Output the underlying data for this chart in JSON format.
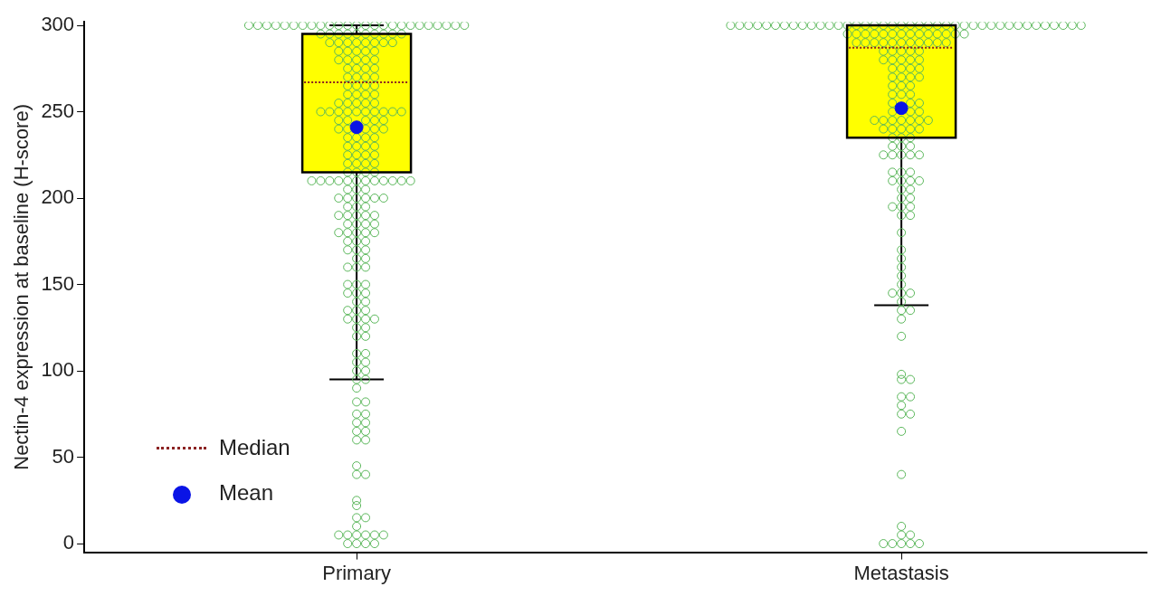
{
  "chart_data": {
    "type": "box",
    "ylabel": "Nectin-4 expression at baseline (H-score)",
    "categories": [
      "Primary",
      "Metastasis"
    ],
    "ylim": [
      -5,
      302
    ],
    "yticks": [
      0,
      50,
      100,
      150,
      200,
      250,
      300
    ],
    "grid": false,
    "annotations": [
      "Median",
      "Mean"
    ],
    "series": [
      {
        "type": "box",
        "color": "#ffff00",
        "boxes": [
          {
            "low": 95,
            "q1": 215,
            "median": 267,
            "q3": 295,
            "high": 300,
            "mean": 241
          },
          {
            "low": 138,
            "q1": 235,
            "median": 287,
            "q3": 300,
            "high": 300,
            "mean": 252
          }
        ]
      },
      {
        "type": "scatter",
        "color": "#5cb85c",
        "marker": "circle",
        "x": [
          "Primary",
          "Primary",
          "Primary",
          "Primary",
          "Primary",
          "Primary",
          "Primary",
          "Primary",
          "Primary",
          "Primary",
          "Primary",
          "Primary",
          "Primary",
          "Primary",
          "Primary",
          "Primary",
          "Primary",
          "Primary",
          "Primary",
          "Primary",
          "Primary",
          "Primary",
          "Primary",
          "Primary",
          "Primary",
          "Primary",
          "Primary",
          "Primary",
          "Primary",
          "Primary",
          "Primary",
          "Primary",
          "Primary",
          "Primary",
          "Primary",
          "Primary",
          "Primary",
          "Primary",
          "Primary",
          "Primary",
          "Primary",
          "Primary",
          "Primary",
          "Primary",
          "Primary",
          "Primary",
          "Primary",
          "Primary",
          "Primary",
          "Primary",
          "Primary",
          "Primary",
          "Primary",
          "Primary",
          "Primary",
          "Primary",
          "Primary",
          "Primary",
          "Primary",
          "Primary",
          "Primary",
          "Primary",
          "Primary",
          "Primary",
          "Primary",
          "Primary",
          "Primary",
          "Primary",
          "Primary",
          "Primary",
          "Primary",
          "Primary",
          "Primary",
          "Primary",
          "Primary",
          "Primary",
          "Primary",
          "Primary",
          "Primary",
          "Primary",
          "Primary",
          "Primary",
          "Primary",
          "Primary",
          "Primary",
          "Primary",
          "Primary",
          "Primary",
          "Primary",
          "Primary",
          "Primary",
          "Primary",
          "Primary",
          "Primary",
          "Primary",
          "Primary",
          "Primary",
          "Primary",
          "Primary",
          "Primary",
          "Primary",
          "Primary",
          "Primary",
          "Primary",
          "Primary",
          "Primary",
          "Primary",
          "Primary",
          "Primary",
          "Primary",
          "Primary",
          "Primary",
          "Primary",
          "Primary",
          "Primary",
          "Primary",
          "Primary",
          "Primary",
          "Primary",
          "Primary",
          "Primary",
          "Primary",
          "Primary",
          "Primary",
          "Primary",
          "Primary",
          "Primary",
          "Primary",
          "Primary",
          "Primary",
          "Primary",
          "Primary",
          "Primary",
          "Primary",
          "Primary",
          "Primary",
          "Primary",
          "Primary",
          "Primary",
          "Primary",
          "Primary",
          "Primary",
          "Primary",
          "Primary",
          "Primary",
          "Primary",
          "Primary",
          "Primary",
          "Primary",
          "Primary",
          "Primary",
          "Primary",
          "Primary",
          "Primary",
          "Primary",
          "Primary",
          "Primary",
          "Primary",
          "Primary",
          "Primary",
          "Primary",
          "Primary",
          "Primary",
          "Primary",
          "Primary",
          "Primary",
          "Primary",
          "Primary",
          "Primary",
          "Primary",
          "Primary",
          "Primary",
          "Primary",
          "Primary",
          "Primary",
          "Primary",
          "Primary",
          "Primary",
          "Primary",
          "Primary",
          "Primary",
          "Primary",
          "Primary",
          "Primary",
          "Primary",
          "Primary",
          "Primary",
          "Primary",
          "Primary",
          "Primary",
          "Primary",
          "Primary",
          "Primary",
          "Primary",
          "Primary",
          "Primary",
          "Primary",
          "Primary",
          "Primary",
          "Primary",
          "Primary",
          "Primary",
          "Primary",
          "Primary",
          "Primary",
          "Primary",
          "Primary",
          "Primary",
          "Primary",
          "Primary",
          "Primary",
          "Primary",
          "Primary",
          "Primary",
          "Primary",
          "Primary",
          "Primary",
          "Primary",
          "Primary"
        ],
        "values": [
          300,
          300,
          300,
          300,
          300,
          300,
          300,
          300,
          300,
          300,
          300,
          300,
          300,
          300,
          300,
          300,
          300,
          300,
          300,
          300,
          300,
          300,
          300,
          300,
          295,
          295,
          295,
          295,
          295,
          295,
          295,
          295,
          295,
          295,
          290,
          290,
          290,
          290,
          290,
          290,
          290,
          290,
          285,
          285,
          285,
          285,
          285,
          280,
          280,
          280,
          280,
          280,
          275,
          275,
          275,
          275,
          270,
          270,
          270,
          270,
          265,
          265,
          265,
          265,
          260,
          260,
          260,
          260,
          255,
          255,
          255,
          255,
          255,
          250,
          250,
          250,
          250,
          250,
          250,
          250,
          250,
          250,
          250,
          245,
          245,
          245,
          245,
          245,
          240,
          240,
          240,
          240,
          240,
          235,
          235,
          235,
          235,
          230,
          230,
          230,
          230,
          225,
          225,
          225,
          225,
          220,
          220,
          220,
          220,
          215,
          215,
          215,
          215,
          210,
          210,
          210,
          210,
          210,
          210,
          210,
          210,
          210,
          210,
          210,
          210,
          205,
          205,
          205,
          200,
          200,
          200,
          200,
          200,
          200,
          195,
          195,
          195,
          190,
          190,
          190,
          190,
          190,
          185,
          185,
          185,
          185,
          180,
          180,
          180,
          180,
          180,
          175,
          175,
          175,
          170,
          170,
          170,
          165,
          165,
          160,
          160,
          160,
          150,
          150,
          150,
          145,
          145,
          145,
          140,
          140,
          135,
          135,
          135,
          130,
          130,
          130,
          130,
          125,
          125,
          120,
          120,
          110,
          110,
          105,
          105,
          100,
          100,
          95,
          95,
          90,
          82,
          82,
          75,
          75,
          70,
          70,
          65,
          65,
          60,
          60,
          45,
          40,
          40,
          25,
          22,
          15,
          15,
          10,
          5,
          5,
          5,
          5,
          5,
          5,
          0,
          0,
          0,
          0,
          300
        ]
      },
      {
        "type": "scatter",
        "color": "#5cb85c",
        "marker": "circle",
        "x": [
          "Metastasis",
          "Metastasis",
          "Metastasis",
          "Metastasis",
          "Metastasis",
          "Metastasis",
          "Metastasis",
          "Metastasis",
          "Metastasis",
          "Metastasis",
          "Metastasis",
          "Metastasis",
          "Metastasis",
          "Metastasis",
          "Metastasis",
          "Metastasis",
          "Metastasis",
          "Metastasis",
          "Metastasis",
          "Metastasis",
          "Metastasis",
          "Metastasis",
          "Metastasis",
          "Metastasis",
          "Metastasis",
          "Metastasis",
          "Metastasis",
          "Metastasis",
          "Metastasis",
          "Metastasis",
          "Metastasis",
          "Metastasis",
          "Metastasis",
          "Metastasis",
          "Metastasis",
          "Metastasis",
          "Metastasis",
          "Metastasis",
          "Metastasis",
          "Metastasis",
          "Metastasis",
          "Metastasis",
          "Metastasis",
          "Metastasis",
          "Metastasis",
          "Metastasis",
          "Metastasis",
          "Metastasis",
          "Metastasis",
          "Metastasis",
          "Metastasis",
          "Metastasis",
          "Metastasis",
          "Metastasis",
          "Metastasis",
          "Metastasis",
          "Metastasis",
          "Metastasis",
          "Metastasis",
          "Metastasis",
          "Metastasis",
          "Metastasis",
          "Metastasis",
          "Metastasis",
          "Metastasis",
          "Metastasis",
          "Metastasis",
          "Metastasis",
          "Metastasis",
          "Metastasis",
          "Metastasis",
          "Metastasis",
          "Metastasis",
          "Metastasis",
          "Metastasis",
          "Metastasis",
          "Metastasis",
          "Metastasis",
          "Metastasis",
          "Metastasis",
          "Metastasis",
          "Metastasis",
          "Metastasis",
          "Metastasis",
          "Metastasis",
          "Metastasis",
          "Metastasis",
          "Metastasis",
          "Metastasis",
          "Metastasis",
          "Metastasis",
          "Metastasis",
          "Metastasis",
          "Metastasis",
          "Metastasis",
          "Metastasis",
          "Metastasis",
          "Metastasis",
          "Metastasis",
          "Metastasis",
          "Metastasis",
          "Metastasis",
          "Metastasis",
          "Metastasis",
          "Metastasis",
          "Metastasis",
          "Metastasis",
          "Metastasis",
          "Metastasis",
          "Metastasis",
          "Metastasis",
          "Metastasis",
          "Metastasis",
          "Metastasis",
          "Metastasis",
          "Metastasis",
          "Metastasis",
          "Metastasis",
          "Metastasis",
          "Metastasis",
          "Metastasis",
          "Metastasis",
          "Metastasis",
          "Metastasis",
          "Metastasis",
          "Metastasis",
          "Metastasis",
          "Metastasis",
          "Metastasis",
          "Metastasis",
          "Metastasis",
          "Metastasis",
          "Metastasis",
          "Metastasis",
          "Metastasis",
          "Metastasis",
          "Metastasis",
          "Metastasis",
          "Metastasis",
          "Metastasis",
          "Metastasis",
          "Metastasis",
          "Metastasis",
          "Metastasis",
          "Metastasis",
          "Metastasis",
          "Metastasis",
          "Metastasis",
          "Metastasis",
          "Metastasis",
          "Metastasis",
          "Metastasis",
          "Metastasis",
          "Metastasis",
          "Metastasis",
          "Metastasis",
          "Metastasis",
          "Metastasis",
          "Metastasis",
          "Metastasis",
          "Metastasis",
          "Metastasis",
          "Metastasis",
          "Metastasis",
          "Metastasis",
          "Metastasis"
        ],
        "values": [
          300,
          300,
          300,
          300,
          300,
          300,
          300,
          300,
          300,
          300,
          300,
          300,
          300,
          300,
          300,
          300,
          300,
          300,
          300,
          300,
          300,
          300,
          300,
          300,
          300,
          300,
          300,
          300,
          300,
          300,
          295,
          295,
          295,
          295,
          295,
          295,
          295,
          295,
          295,
          295,
          290,
          290,
          290,
          290,
          290,
          290,
          290,
          285,
          285,
          285,
          285,
          285,
          280,
          280,
          280,
          280,
          280,
          275,
          275,
          275,
          275,
          270,
          270,
          270,
          270,
          265,
          265,
          265,
          260,
          260,
          260,
          255,
          255,
          255,
          250,
          250,
          250,
          245,
          245,
          245,
          245,
          245,
          245,
          245,
          240,
          240,
          240,
          240,
          240,
          235,
          235,
          235,
          230,
          230,
          230,
          225,
          225,
          225,
          225,
          225,
          215,
          215,
          215,
          210,
          210,
          210,
          210,
          205,
          205,
          200,
          200,
          195,
          195,
          195,
          190,
          190,
          180,
          170,
          165,
          160,
          155,
          150,
          145,
          145,
          145,
          140,
          135,
          135,
          130,
          120,
          98,
          95,
          95,
          85,
          85,
          80,
          75,
          75,
          65,
          40,
          10,
          5,
          5,
          0,
          0,
          0,
          0,
          0,
          300,
          300,
          300,
          300,
          300,
          300,
          300,
          300,
          300,
          300,
          295,
          295,
          295,
          295,
          290,
          290,
          290,
          290
        ]
      }
    ]
  }
}
